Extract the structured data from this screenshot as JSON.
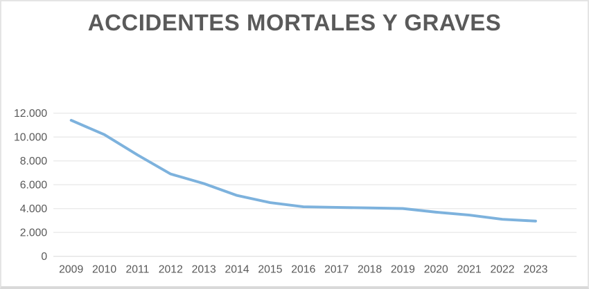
{
  "chart_data": {
    "type": "line",
    "title": "ACCIDENTES MORTALES Y GRAVES",
    "categories": [
      "2009",
      "2010",
      "2011",
      "2012",
      "2013",
      "2014",
      "2015",
      "2016",
      "2017",
      "2018",
      "2019",
      "2020",
      "2021",
      "2022",
      "2023"
    ],
    "values": [
      11400,
      10200,
      8500,
      6900,
      6100,
      5100,
      4500,
      4150,
      4100,
      4050,
      4000,
      3700,
      3450,
      3100,
      2950
    ],
    "xlabel": "",
    "ylabel": "",
    "ylim": [
      0,
      12000
    ],
    "yticks": [
      0,
      2000,
      4000,
      6000,
      8000,
      10000,
      12000
    ],
    "ytick_labels": [
      "0",
      "2.000",
      "4.000",
      "6.000",
      "8.000",
      "10.000",
      "12.000"
    ],
    "grid": true,
    "legend": false,
    "style": {
      "line_color": "#7db2dd",
      "line_width": 4,
      "grid_color": "#eaeaea",
      "zero_line_color": "#e2e2e2",
      "tick_label_color": "#595959",
      "title_color": "#5a5a5a",
      "background": "#ffffff",
      "border_color": "#e4e4e4"
    }
  }
}
